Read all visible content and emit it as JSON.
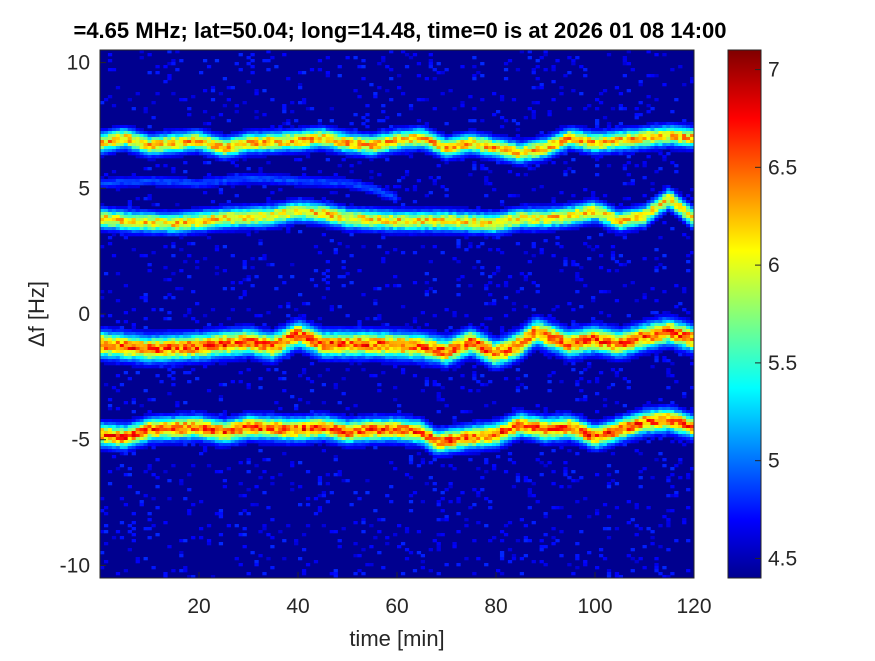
{
  "chart_data": {
    "type": "heatmap",
    "title": "=4.65 MHz;  lat=50.04; long=14.48, time=0 is at 2026 01 08 14:00",
    "xlabel": "time [min]",
    "ylabel": "Δf [Hz]",
    "xlim": [
      0,
      120
    ],
    "ylim": [
      -10.5,
      10.5
    ],
    "x_ticks": [
      20,
      40,
      60,
      80,
      100,
      120
    ],
    "y_ticks": [
      10,
      5,
      0,
      -5,
      -10
    ],
    "colorbar": {
      "range": [
        4.4,
        7.1
      ],
      "ticks": [
        4.5,
        5,
        5.5,
        6,
        6.5,
        7
      ],
      "colormap": "jet",
      "low_color": "#00008f",
      "high_color": "#800000"
    },
    "background_level": 4.5,
    "traces": [
      {
        "name": "trace-1",
        "points": [
          [
            0,
            6.8
          ],
          [
            5,
            7.0
          ],
          [
            10,
            6.7
          ],
          [
            20,
            6.9
          ],
          [
            25,
            6.6
          ],
          [
            30,
            6.8
          ],
          [
            40,
            6.9
          ],
          [
            45,
            7.0
          ],
          [
            50,
            6.8
          ],
          [
            55,
            6.7
          ],
          [
            60,
            6.9
          ],
          [
            65,
            7.0
          ],
          [
            70,
            6.6
          ],
          [
            75,
            6.8
          ],
          [
            80,
            6.6
          ],
          [
            85,
            6.4
          ],
          [
            90,
            6.6
          ],
          [
            95,
            7.0
          ],
          [
            100,
            6.8
          ],
          [
            105,
            6.9
          ],
          [
            110,
            7.0
          ],
          [
            115,
            7.1
          ],
          [
            120,
            7.0
          ]
        ],
        "peak": 6.6,
        "spread": 0.35
      },
      {
        "name": "trace-2",
        "points": [
          [
            0,
            3.8
          ],
          [
            5,
            3.7
          ],
          [
            15,
            3.6
          ],
          [
            25,
            3.8
          ],
          [
            35,
            3.9
          ],
          [
            40,
            4.1
          ],
          [
            45,
            4.0
          ],
          [
            50,
            3.8
          ],
          [
            60,
            3.7
          ],
          [
            70,
            3.7
          ],
          [
            80,
            3.6
          ],
          [
            85,
            3.8
          ],
          [
            90,
            3.8
          ],
          [
            95,
            3.9
          ],
          [
            100,
            4.1
          ],
          [
            105,
            3.7
          ],
          [
            110,
            3.9
          ],
          [
            115,
            4.6
          ],
          [
            120,
            3.8
          ]
        ],
        "peak": 6.5,
        "spread": 0.35
      },
      {
        "name": "trace-3",
        "points": [
          [
            0,
            5.2
          ],
          [
            10,
            5.3
          ],
          [
            20,
            5.2
          ],
          [
            30,
            5.4
          ],
          [
            40,
            5.3
          ],
          [
            50,
            5.2
          ],
          [
            55,
            5.0
          ],
          [
            60,
            4.6
          ]
        ],
        "peak": 5.0,
        "spread": 0.2
      },
      {
        "name": "trace-4",
        "points": [
          [
            0,
            -1.2
          ],
          [
            10,
            -1.4
          ],
          [
            20,
            -1.3
          ],
          [
            30,
            -1.1
          ],
          [
            35,
            -1.3
          ],
          [
            40,
            -0.8
          ],
          [
            45,
            -1.2
          ],
          [
            55,
            -1.2
          ],
          [
            65,
            -1.3
          ],
          [
            70,
            -1.5
          ],
          [
            75,
            -1.1
          ],
          [
            80,
            -1.6
          ],
          [
            85,
            -1.2
          ],
          [
            88,
            -0.7
          ],
          [
            95,
            -1.2
          ],
          [
            100,
            -1.0
          ],
          [
            105,
            -1.2
          ],
          [
            110,
            -0.9
          ],
          [
            115,
            -0.7
          ],
          [
            120,
            -1.0
          ]
        ],
        "peak": 6.9,
        "spread": 0.45
      },
      {
        "name": "trace-5",
        "points": [
          [
            0,
            -4.8
          ],
          [
            5,
            -4.9
          ],
          [
            10,
            -4.6
          ],
          [
            20,
            -4.5
          ],
          [
            25,
            -4.7
          ],
          [
            30,
            -4.5
          ],
          [
            40,
            -4.6
          ],
          [
            45,
            -4.5
          ],
          [
            50,
            -4.7
          ],
          [
            55,
            -4.6
          ],
          [
            60,
            -4.6
          ],
          [
            65,
            -4.7
          ],
          [
            68,
            -5.1
          ],
          [
            75,
            -4.9
          ],
          [
            80,
            -4.8
          ],
          [
            85,
            -4.4
          ],
          [
            90,
            -4.6
          ],
          [
            95,
            -4.5
          ],
          [
            100,
            -4.9
          ],
          [
            105,
            -4.6
          ],
          [
            110,
            -4.3
          ],
          [
            115,
            -4.2
          ],
          [
            120,
            -4.5
          ]
        ],
        "peak": 6.9,
        "spread": 0.4
      }
    ]
  }
}
